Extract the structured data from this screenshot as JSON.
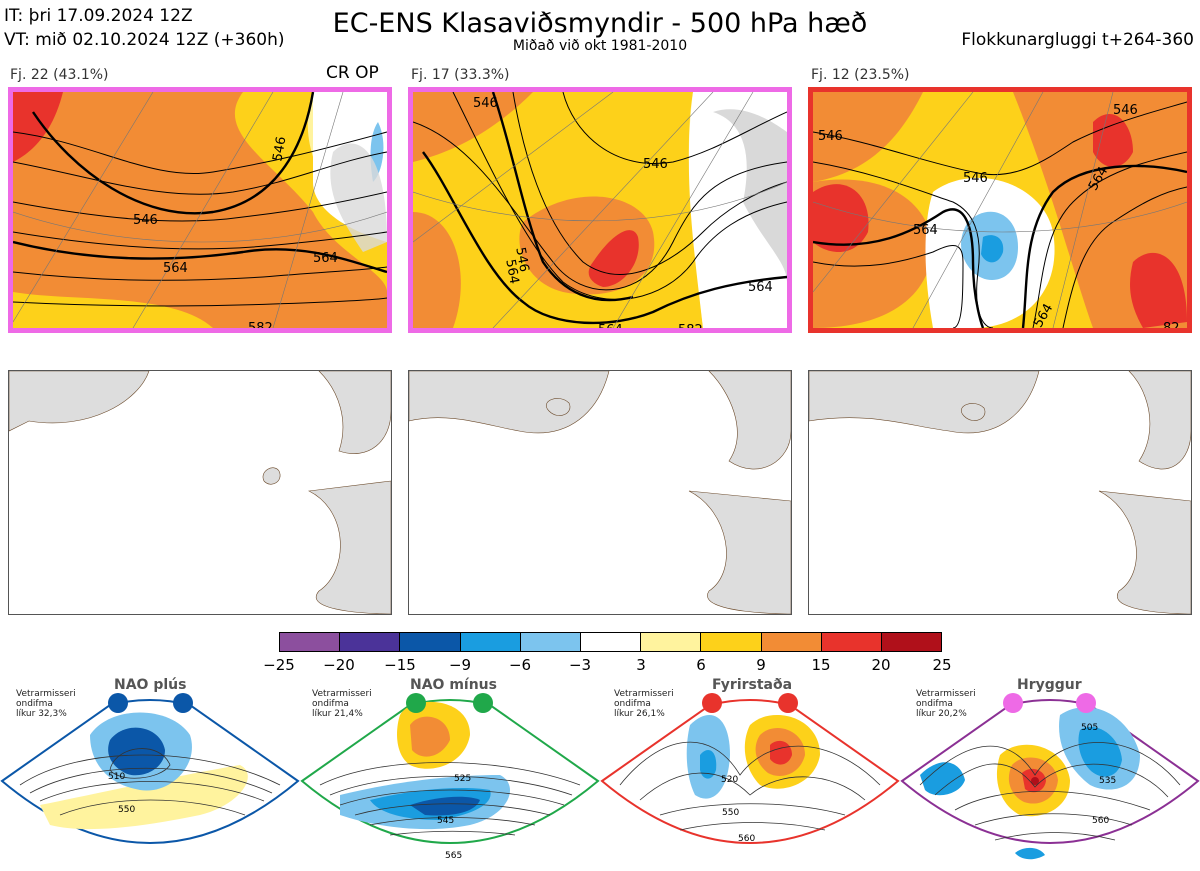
{
  "header": {
    "it_label": "IT: þri 17.09.2024 12Z",
    "vt_label": "VT: mið 02.10.2024 12Z  (+360h)",
    "title": "EC-ENS Klasaviðsmyndir - 500 hPa hæð",
    "subtitle": "Miðað við okt 1981-2010",
    "window": "Flokkunargluggi t+264-360"
  },
  "clusters": [
    {
      "label": "Fj. 22 (43.1%)",
      "extra": "CR OP",
      "border_color": "#ee6ae6",
      "contours": [
        "546",
        "546",
        "564",
        "564",
        "582"
      ]
    },
    {
      "label": "Fj. 17 (33.3%)",
      "extra": "",
      "border_color": "#ee6ae6",
      "contours": [
        "546",
        "546",
        "546",
        "564",
        "564",
        "582",
        "564"
      ]
    },
    {
      "label": "Fj. 12 (23.5%)",
      "extra": "",
      "border_color": "#e8332c",
      "contours": [
        "546",
        "546",
        "546",
        "564",
        "564",
        "564",
        "82"
      ]
    }
  ],
  "colorbar": {
    "colors": [
      "#8c4f9e",
      "#4b3399",
      "#0b57a8",
      "#1a9de0",
      "#7cc4ee",
      "#ffffff",
      "#fff39e",
      "#fdd11a",
      "#f28c35",
      "#e8332c",
      "#b0101a"
    ],
    "ticks": [
      "−25",
      "−20",
      "−15",
      "−9",
      "−6",
      "−3",
      "3",
      "6",
      "9",
      "15",
      "20",
      "25"
    ]
  },
  "regimes": [
    {
      "name": "NAO plús",
      "info_line1": "Vetrarmisseri",
      "info_line2": "ondifma",
      "info_line3": "líkur 32,3%",
      "dot_color": "#0b57a8",
      "frame_color": "#0b57a8",
      "labels": [
        "510",
        "550"
      ]
    },
    {
      "name": "NAO mínus",
      "info_line1": "Vetrarmisseri",
      "info_line2": "ondifma",
      "info_line3": "líkur 21,4%",
      "dot_color": "#20a84a",
      "frame_color": "#20a84a",
      "labels": [
        "525",
        "545",
        "565"
      ]
    },
    {
      "name": "Fyrirstaða",
      "info_line1": "Vetrarmisseri",
      "info_line2": "ondifma",
      "info_line3": "líkur 26,1%",
      "dot_color": "#e8332c",
      "frame_color": "#e8332c",
      "labels": [
        "520",
        "550",
        "560"
      ]
    },
    {
      "name": "Hryggur",
      "info_line1": "Vetrarmisseri",
      "info_line2": "ondifma",
      "info_line3": "líkur 20,2%",
      "dot_color": "#ee6ae6",
      "frame_color": "#8b3094",
      "labels": [
        "505",
        "535",
        "560"
      ]
    }
  ]
}
